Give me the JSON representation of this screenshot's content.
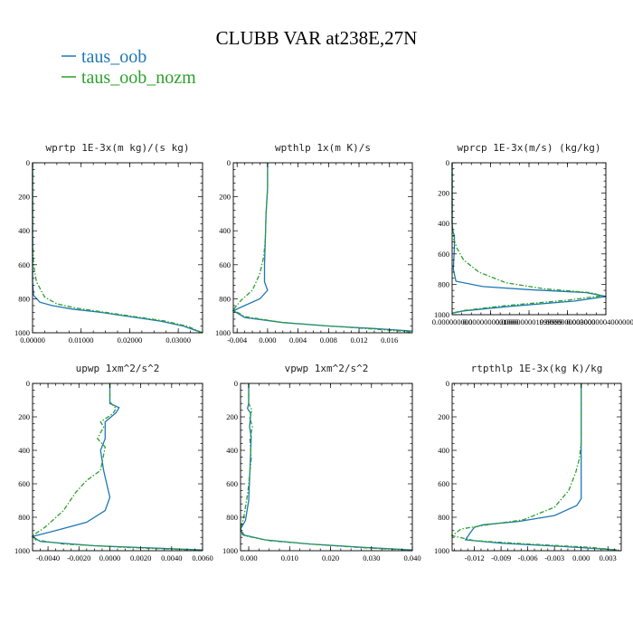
{
  "figure": {
    "title": "CLUBB VAR at238E,27N"
  },
  "legend": [
    {
      "label": "taus_oob",
      "color": "#1f77b4",
      "dash": "solid"
    },
    {
      "label": "taus_oob_nozm",
      "color": "#2ca02c",
      "dash": "dashdot"
    }
  ],
  "chart_data": [
    {
      "type": "line",
      "title": "wprtp  1E-3x(m kg)/(s kg)",
      "xlim": [
        0,
        0.035
      ],
      "ylim": [
        1000,
        0
      ],
      "xticks": [
        0,
        0.01,
        0.02,
        0.03
      ],
      "xtick_labels": [
        "0.00000",
        "0.01000",
        "0.02000",
        "0.03000"
      ],
      "yticks": [
        0,
        200,
        400,
        600,
        800,
        1000
      ],
      "ytick_labels": [
        "0",
        "200",
        "400",
        "600",
        "800",
        "1000"
      ],
      "series": [
        {
          "name": "taus_oob",
          "x": [
            0,
            0,
            0,
            0.0002,
            0.0015,
            0.004,
            0.008,
            0.014,
            0.02,
            0.026,
            0.031,
            0.0335,
            0.035
          ],
          "y": [
            0,
            400,
            700,
            780,
            820,
            840,
            860,
            880,
            905,
            930,
            960,
            985,
            1000
          ]
        },
        {
          "name": "taus_oob_nozm",
          "x": [
            0,
            0,
            0.0002,
            0.0008,
            0.0025,
            0.005,
            0.009,
            0.015,
            0.021,
            0.027,
            0.032,
            0.034,
            0.035
          ],
          "y": [
            0,
            450,
            600,
            700,
            790,
            830,
            855,
            880,
            905,
            930,
            962,
            988,
            1000
          ]
        }
      ]
    },
    {
      "type": "line",
      "title": "wpthlp  1x(m K)/s",
      "xlim": [
        -0.0045,
        0.019
      ],
      "ylim": [
        1000,
        0
      ],
      "xticks": [
        -0.004,
        0,
        0.004,
        0.008,
        0.012,
        0.016
      ],
      "xtick_labels": [
        "-0.004",
        "0.000",
        "0.004",
        "0.008",
        "0.012",
        "0.016"
      ],
      "yticks": [
        0,
        200,
        400,
        600,
        800,
        1000
      ],
      "ytick_labels": [
        "0",
        "200",
        "400",
        "600",
        "800",
        "1000"
      ],
      "series": [
        {
          "name": "taus_oob",
          "x": [
            0,
            0,
            -0.0002,
            -0.0003,
            -0.0004,
            -0.0004,
            0,
            -0.001,
            -0.003,
            -0.0045,
            -0.003,
            0.002,
            0.008,
            0.014,
            0.019
          ],
          "y": [
            0,
            150,
            300,
            450,
            600,
            700,
            750,
            800,
            840,
            870,
            910,
            940,
            960,
            975,
            990
          ]
        },
        {
          "name": "taus_oob_nozm",
          "x": [
            0,
            0,
            -0.0002,
            -0.0003,
            -0.0005,
            -0.001,
            -0.002,
            -0.0035,
            -0.0045,
            -0.003,
            0.002,
            0.008,
            0.014,
            0.019
          ],
          "y": [
            0,
            150,
            300,
            450,
            550,
            650,
            750,
            810,
            865,
            905,
            940,
            960,
            978,
            995
          ]
        }
      ]
    },
    {
      "type": "line",
      "title": "wprcp  1E-3x(m/s) (kg/kg)",
      "xlim": [
        0,
        4.0000002e-10
      ],
      "ylim": [
        1000,
        0
      ],
      "xticks": [
        0,
        1e-10,
        1.9999999e-10,
        3e-10,
        4e-10
      ],
      "xtick_labels": [
        "0.000000000",
        "0.0000000001000",
        "0.0000000001999999",
        "0.0000000003000",
        "0.0000000004000000200"
      ],
      "yticks": [
        0,
        200,
        400,
        600,
        800,
        1000
      ],
      "ytick_labels": [
        "0",
        "200",
        "400",
        "600",
        "800",
        "1000"
      ],
      "series": [
        {
          "name": "taus_oob",
          "x": [
            0,
            0,
            2e-12,
            6e-12,
            6e-12,
            3e-12,
            1e-11,
            8e-11,
            2e-10,
            3.5e-10,
            4e-10,
            3.2e-10,
            1.5e-10,
            3e-11,
            0
          ],
          "y": [
            0,
            400,
            450,
            480,
            560,
            700,
            780,
            815,
            835,
            855,
            880,
            910,
            945,
            975,
            990
          ]
        },
        {
          "name": "taus_oob_nozm",
          "x": [
            0,
            0,
            4e-12,
            1.2e-11,
            3e-11,
            7e-11,
            1.4e-10,
            2.4e-10,
            3.6e-10,
            3.9e-10,
            3e-10,
            1.4e-10,
            3e-11,
            0
          ],
          "y": [
            0,
            400,
            500,
            560,
            640,
            720,
            790,
            830,
            855,
            875,
            905,
            940,
            972,
            990
          ]
        }
      ]
    },
    {
      "type": "line",
      "title": "upwp  1xm^2/s^2",
      "xlim": [
        -0.005,
        0.006
      ],
      "ylim": [
        1000,
        0
      ],
      "xticks": [
        -0.004,
        -0.002,
        0,
        0.002,
        0.004,
        0.006
      ],
      "xtick_labels": [
        "-0.0040",
        "-0.0020",
        "0.0000",
        "0.0020",
        "0.0040",
        "0.0060"
      ],
      "yticks": [
        0,
        200,
        400,
        600,
        800,
        1000
      ],
      "ytick_labels": [
        "0",
        "200",
        "400",
        "600",
        "800",
        "1000"
      ],
      "series": [
        {
          "name": "taus_oob",
          "x": [
            0,
            0,
            0.0006,
            0.0004,
            -0.0003,
            -0.0003,
            -0.0006,
            -0.0004,
            -0.0002,
            0,
            -0.0003,
            -0.0015,
            -0.0035,
            -0.005,
            -0.0045,
            -0.001,
            0.003,
            0.006
          ],
          "y": [
            0,
            120,
            145,
            175,
            230,
            330,
            400,
            520,
            600,
            680,
            760,
            830,
            880,
            915,
            945,
            970,
            985,
            995
          ]
        },
        {
          "name": "taus_oob_nozm",
          "x": [
            0,
            0,
            0.0004,
            0.0002,
            -0.0006,
            -0.0004,
            -0.0008,
            -0.0003,
            -0.0006,
            -0.0015,
            -0.0022,
            -0.003,
            -0.0042,
            -0.005,
            -0.0048,
            -0.003,
            0.001,
            0.006
          ],
          "y": [
            0,
            110,
            150,
            180,
            230,
            260,
            330,
            380,
            520,
            580,
            650,
            760,
            860,
            910,
            935,
            960,
            980,
            998
          ]
        }
      ]
    },
    {
      "type": "line",
      "title": "vpwp  1xm^2/s^2",
      "xlim": [
        -0.002,
        0.04
      ],
      "ylim": [
        1000,
        0
      ],
      "xticks": [
        0,
        0.01,
        0.02,
        0.03,
        0.04
      ],
      "xtick_labels": [
        "0.000",
        "0.010",
        "0.020",
        "0.030",
        "0.040"
      ],
      "yticks": [
        0,
        200,
        400,
        600,
        800,
        1000
      ],
      "ytick_labels": [
        "0",
        "200",
        "400",
        "600",
        "800",
        "1000"
      ],
      "series": [
        {
          "name": "taus_oob",
          "x": [
            0,
            0,
            -0.0003,
            0.0005,
            0.0002,
            0.0006,
            0.0004,
            0,
            -0.0008,
            -0.002,
            -0.0015,
            0.004,
            0.015,
            0.028,
            0.04
          ],
          "y": [
            0,
            120,
            150,
            180,
            260,
            320,
            450,
            700,
            820,
            870,
            905,
            935,
            960,
            980,
            995
          ]
        },
        {
          "name": "taus_oob_nozm",
          "x": [
            0,
            0,
            0.0008,
            0.0002,
            0.0009,
            0.0003,
            0.0006,
            -0.0002,
            -0.0012,
            -0.002,
            -0.001,
            0.005,
            0.016,
            0.028,
            0.04
          ],
          "y": [
            0,
            120,
            160,
            200,
            260,
            330,
            450,
            650,
            800,
            870,
            910,
            940,
            962,
            982,
            998
          ]
        }
      ]
    },
    {
      "type": "line",
      "title": "rtpthlp  1E-3x(kg K)/kg",
      "xlim": [
        -0.0145,
        0.0045
      ],
      "ylim": [
        1000,
        0
      ],
      "xticks": [
        -0.012,
        -0.009,
        -0.006,
        -0.003,
        0,
        0.003
      ],
      "xtick_labels": [
        "-0.012",
        "-0.009",
        "-0.006",
        "-0.003",
        "0.000",
        "0.003"
      ],
      "yticks": [
        0,
        200,
        400,
        600,
        800,
        1000
      ],
      "ytick_labels": [
        "0",
        "200",
        "400",
        "600",
        "800",
        "1000"
      ],
      "series": [
        {
          "name": "taus_oob",
          "x": [
            0,
            0,
            0,
            0,
            -0.0005,
            -0.003,
            -0.007,
            -0.011,
            -0.012,
            -0.0125,
            -0.013,
            -0.009,
            -0.002,
            0.004
          ],
          "y": [
            0,
            300,
            600,
            690,
            730,
            790,
            825,
            845,
            860,
            895,
            935,
            955,
            975,
            995
          ]
        },
        {
          "name": "taus_oob_nozm",
          "x": [
            0,
            0,
            -0.0002,
            -0.0006,
            -0.0014,
            -0.003,
            -0.0065,
            -0.0105,
            -0.0135,
            -0.0145,
            -0.012,
            -0.006,
            0.001,
            0.0045
          ],
          "y": [
            0,
            350,
            450,
            530,
            640,
            740,
            815,
            845,
            870,
            910,
            940,
            960,
            980,
            998
          ]
        }
      ]
    }
  ]
}
